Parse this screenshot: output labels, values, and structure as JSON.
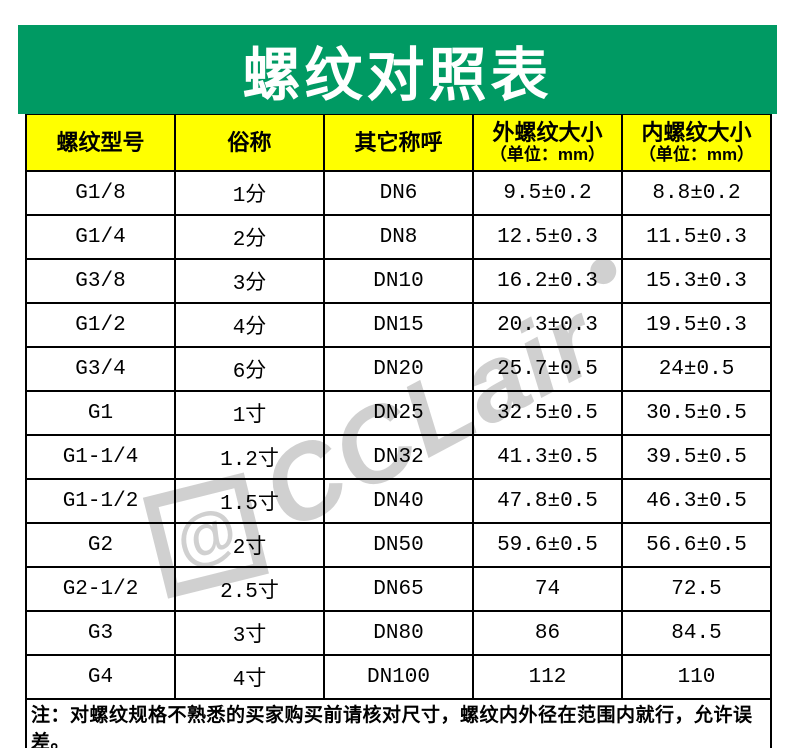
{
  "title": "螺纹对照表",
  "colors": {
    "banner_green": "#009A63",
    "header_yellow": "#FFFF00",
    "border_black": "#000000",
    "title_white": "#FFFFFF",
    "watermark_gray": "#CBCBCB"
  },
  "watermark": {
    "brand": "CCLair",
    "logo_glyph": "@"
  },
  "chart_data": {
    "type": "table",
    "title": "螺纹对照表",
    "columns": [
      {
        "label": "螺纹型号",
        "sub": ""
      },
      {
        "label": "俗称",
        "sub": ""
      },
      {
        "label": "其它称呼",
        "sub": ""
      },
      {
        "label": "外螺纹大小",
        "sub": "（单位：mm）"
      },
      {
        "label": "内螺纹大小",
        "sub": "（单位：mm）"
      }
    ],
    "rows": [
      [
        "G1/8",
        "1分",
        "DN6",
        "9.5±0.2",
        "8.8±0.2"
      ],
      [
        "G1/4",
        "2分",
        "DN8",
        "12.5±0.3",
        "11.5±0.3"
      ],
      [
        "G3/8",
        "3分",
        "DN10",
        "16.2±0.3",
        "15.3±0.3"
      ],
      [
        "G1/2",
        "4分",
        "DN15",
        "20.3±0.3",
        "19.5±0.3"
      ],
      [
        "G3/4",
        "6分",
        "DN20",
        "25.7±0.5",
        "24±0.5"
      ],
      [
        "G1",
        "1寸",
        "DN25",
        "32.5±0.5",
        "30.5±0.5"
      ],
      [
        "G1-1/4",
        "1.2寸",
        "DN32",
        "41.3±0.5",
        "39.5±0.5"
      ],
      [
        "G1-1/2",
        "1.5寸",
        "DN40",
        "47.8±0.5",
        "46.3±0.5"
      ],
      [
        "G2",
        "2寸",
        "DN50",
        "59.6±0.5",
        "56.6±0.5"
      ],
      [
        "G2-1/2",
        "2.5寸",
        "DN65",
        "74",
        "72.5"
      ],
      [
        "G3",
        "3寸",
        "DN80",
        "86",
        "84.5"
      ],
      [
        "G4",
        "4寸",
        "DN100",
        "112",
        "110"
      ]
    ],
    "note": "注：对螺纹规格不熟悉的买家购买前请核对尺寸，螺纹内外径在范围内就行，允许误差。"
  }
}
